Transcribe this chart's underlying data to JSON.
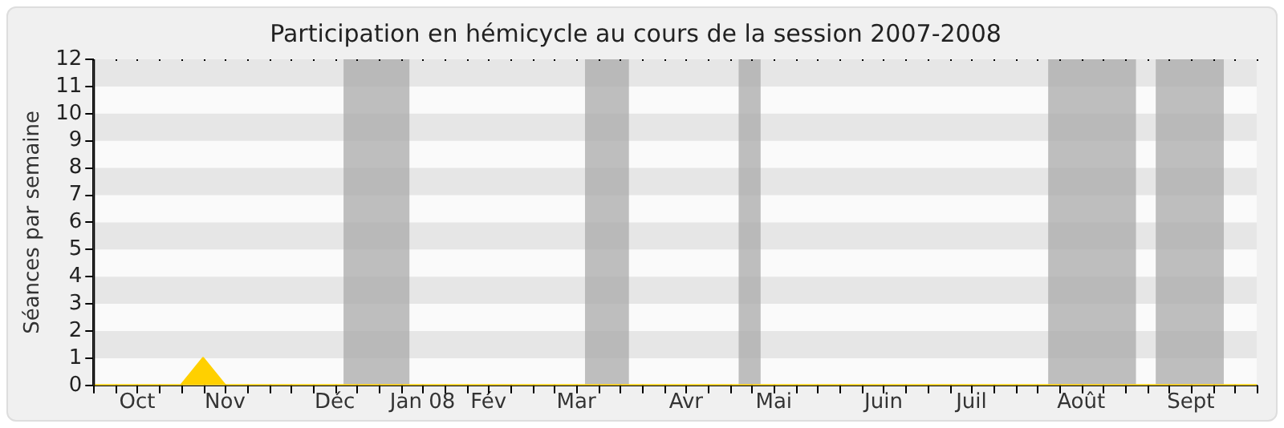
{
  "chart_data": {
    "type": "area",
    "title": "Participation en hémicycle au cours de la session 2007-2008",
    "ylabel": "Séances par semaine",
    "categories": [
      null,
      null,
      "Oct",
      null,
      null,
      null,
      "Nov",
      null,
      null,
      null,
      null,
      "Déc",
      null,
      null,
      null,
      "Jan 08",
      null,
      null,
      "Fév",
      null,
      null,
      null,
      "Mar",
      null,
      null,
      null,
      null,
      "Avr",
      null,
      null,
      null,
      "Mai",
      null,
      null,
      null,
      null,
      "Juin",
      null,
      null,
      null,
      "Juil",
      null,
      null,
      null,
      null,
      "Août",
      null,
      null,
      null,
      null,
      "Sept",
      null,
      null,
      null
    ],
    "series": [
      {
        "color": "#ffd000",
        "values": [
          0,
          0,
          0,
          0,
          0,
          1,
          0,
          0,
          0,
          0,
          0,
          0,
          0,
          0,
          0,
          0,
          0,
          0,
          0,
          0,
          0,
          0,
          0,
          0,
          0,
          0,
          0,
          0,
          0,
          0,
          0,
          0,
          0,
          0,
          0,
          0,
          0,
          0,
          0,
          0,
          0,
          0,
          0,
          0,
          0,
          0,
          0,
          0,
          0,
          0,
          0,
          0,
          0,
          0
        ]
      }
    ],
    "ylim": [
      0,
      12
    ],
    "yticks": [
      0,
      1,
      2,
      3,
      4,
      5,
      6,
      7,
      8,
      9,
      10,
      11,
      12
    ],
    "marker": "none"
  }
}
